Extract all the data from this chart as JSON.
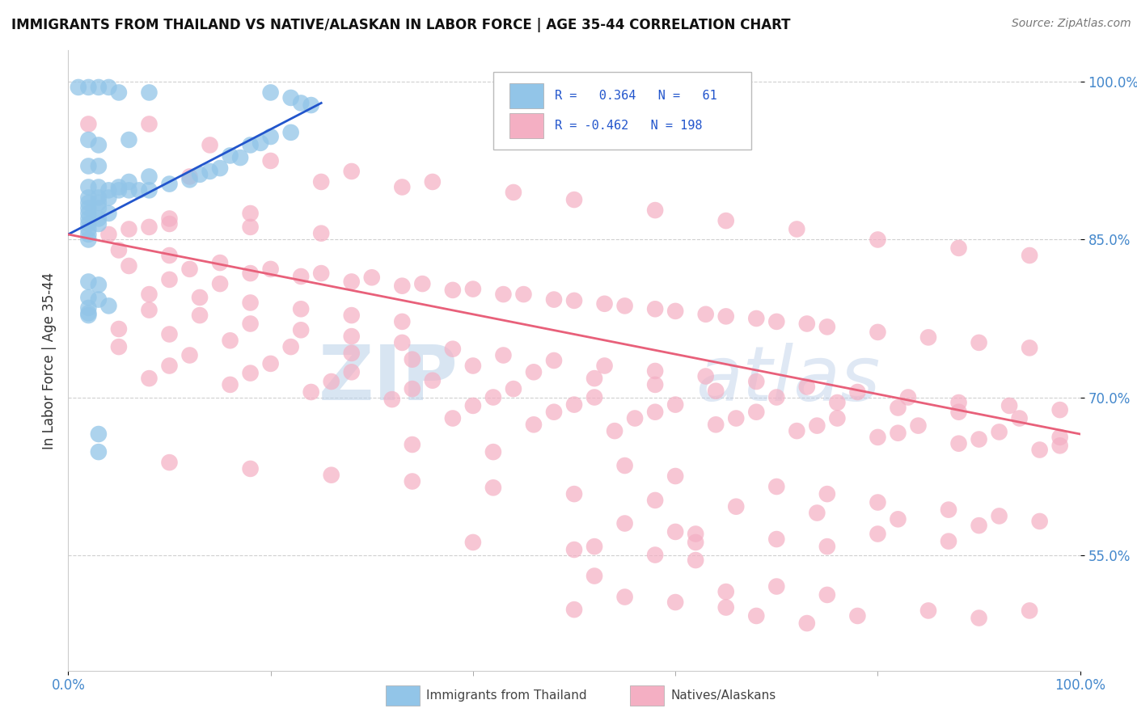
{
  "title": "IMMIGRANTS FROM THAILAND VS NATIVE/ALASKAN IN LABOR FORCE | AGE 35-44 CORRELATION CHART",
  "source": "Source: ZipAtlas.com",
  "ylabel": "In Labor Force | Age 35-44",
  "xlim": [
    0.0,
    1.0
  ],
  "ylim": [
    0.44,
    1.03
  ],
  "x_tick_labels": [
    "0.0%",
    "100.0%"
  ],
  "y_tick_labels": [
    "55.0%",
    "70.0%",
    "85.0%",
    "100.0%"
  ],
  "y_tick_positions": [
    0.55,
    0.7,
    0.85,
    1.0
  ],
  "blue_color": "#92c5e8",
  "pink_color": "#f4afc3",
  "line_blue": "#2255cc",
  "line_pink": "#e8607a",
  "watermark1": "ZIP",
  "watermark2": "atlas",
  "bg_color": "#ffffff",
  "grid_color": "#d0d0d0",
  "blue_scatter": [
    [
      0.01,
      0.995
    ],
    [
      0.02,
      0.995
    ],
    [
      0.03,
      0.995
    ],
    [
      0.04,
      0.995
    ],
    [
      0.05,
      0.99
    ],
    [
      0.08,
      0.99
    ],
    [
      0.2,
      0.99
    ],
    [
      0.22,
      0.985
    ],
    [
      0.23,
      0.98
    ],
    [
      0.02,
      0.945
    ],
    [
      0.03,
      0.94
    ],
    [
      0.06,
      0.945
    ],
    [
      0.02,
      0.92
    ],
    [
      0.03,
      0.92
    ],
    [
      0.02,
      0.9
    ],
    [
      0.03,
      0.9
    ],
    [
      0.04,
      0.897
    ],
    [
      0.05,
      0.897
    ],
    [
      0.06,
      0.897
    ],
    [
      0.07,
      0.897
    ],
    [
      0.08,
      0.897
    ],
    [
      0.02,
      0.89
    ],
    [
      0.03,
      0.89
    ],
    [
      0.04,
      0.89
    ],
    [
      0.02,
      0.885
    ],
    [
      0.03,
      0.885
    ],
    [
      0.02,
      0.88
    ],
    [
      0.03,
      0.88
    ],
    [
      0.02,
      0.875
    ],
    [
      0.04,
      0.875
    ],
    [
      0.02,
      0.87
    ],
    [
      0.03,
      0.87
    ],
    [
      0.02,
      0.865
    ],
    [
      0.03,
      0.865
    ],
    [
      0.02,
      0.86
    ],
    [
      0.02,
      0.855
    ],
    [
      0.1,
      0.903
    ],
    [
      0.12,
      0.907
    ],
    [
      0.14,
      0.915
    ],
    [
      0.16,
      0.93
    ],
    [
      0.18,
      0.94
    ],
    [
      0.2,
      0.948
    ],
    [
      0.05,
      0.9
    ],
    [
      0.06,
      0.905
    ],
    [
      0.08,
      0.91
    ],
    [
      0.24,
      0.978
    ],
    [
      0.13,
      0.912
    ],
    [
      0.15,
      0.918
    ],
    [
      0.17,
      0.928
    ],
    [
      0.19,
      0.942
    ],
    [
      0.22,
      0.952
    ],
    [
      0.02,
      0.85
    ],
    [
      0.02,
      0.81
    ],
    [
      0.03,
      0.807
    ],
    [
      0.02,
      0.795
    ],
    [
      0.03,
      0.793
    ],
    [
      0.02,
      0.785
    ],
    [
      0.04,
      0.787
    ],
    [
      0.02,
      0.78
    ],
    [
      0.02,
      0.778
    ],
    [
      0.03,
      0.665
    ],
    [
      0.03,
      0.648
    ]
  ],
  "pink_scatter": [
    [
      0.02,
      0.96
    ],
    [
      0.12,
      0.91
    ],
    [
      0.18,
      0.875
    ],
    [
      0.08,
      0.96
    ],
    [
      0.14,
      0.94
    ],
    [
      0.2,
      0.925
    ],
    [
      0.28,
      0.915
    ],
    [
      0.36,
      0.905
    ],
    [
      0.44,
      0.895
    ],
    [
      0.5,
      0.888
    ],
    [
      0.58,
      0.878
    ],
    [
      0.65,
      0.868
    ],
    [
      0.72,
      0.86
    ],
    [
      0.8,
      0.85
    ],
    [
      0.88,
      0.842
    ],
    [
      0.95,
      0.835
    ],
    [
      0.25,
      0.905
    ],
    [
      0.33,
      0.9
    ],
    [
      0.1,
      0.87
    ],
    [
      0.18,
      0.862
    ],
    [
      0.25,
      0.856
    ],
    [
      0.04,
      0.855
    ],
    [
      0.06,
      0.86
    ],
    [
      0.08,
      0.862
    ],
    [
      0.1,
      0.865
    ],
    [
      0.05,
      0.84
    ],
    [
      0.1,
      0.835
    ],
    [
      0.15,
      0.828
    ],
    [
      0.2,
      0.822
    ],
    [
      0.25,
      0.818
    ],
    [
      0.3,
      0.814
    ],
    [
      0.35,
      0.808
    ],
    [
      0.4,
      0.803
    ],
    [
      0.45,
      0.798
    ],
    [
      0.5,
      0.792
    ],
    [
      0.55,
      0.787
    ],
    [
      0.6,
      0.782
    ],
    [
      0.65,
      0.777
    ],
    [
      0.7,
      0.772
    ],
    [
      0.75,
      0.767
    ],
    [
      0.8,
      0.762
    ],
    [
      0.85,
      0.757
    ],
    [
      0.9,
      0.752
    ],
    [
      0.95,
      0.747
    ],
    [
      0.06,
      0.825
    ],
    [
      0.12,
      0.822
    ],
    [
      0.18,
      0.818
    ],
    [
      0.23,
      0.815
    ],
    [
      0.28,
      0.81
    ],
    [
      0.33,
      0.806
    ],
    [
      0.38,
      0.802
    ],
    [
      0.43,
      0.798
    ],
    [
      0.48,
      0.793
    ],
    [
      0.53,
      0.789
    ],
    [
      0.58,
      0.784
    ],
    [
      0.63,
      0.779
    ],
    [
      0.68,
      0.775
    ],
    [
      0.73,
      0.77
    ],
    [
      0.1,
      0.812
    ],
    [
      0.15,
      0.808
    ],
    [
      0.08,
      0.798
    ],
    [
      0.13,
      0.795
    ],
    [
      0.18,
      0.79
    ],
    [
      0.23,
      0.784
    ],
    [
      0.28,
      0.778
    ],
    [
      0.33,
      0.772
    ],
    [
      0.08,
      0.783
    ],
    [
      0.13,
      0.778
    ],
    [
      0.18,
      0.77
    ],
    [
      0.23,
      0.764
    ],
    [
      0.28,
      0.758
    ],
    [
      0.33,
      0.752
    ],
    [
      0.38,
      0.746
    ],
    [
      0.43,
      0.74
    ],
    [
      0.48,
      0.735
    ],
    [
      0.53,
      0.73
    ],
    [
      0.58,
      0.725
    ],
    [
      0.63,
      0.72
    ],
    [
      0.68,
      0.715
    ],
    [
      0.73,
      0.71
    ],
    [
      0.78,
      0.705
    ],
    [
      0.83,
      0.7
    ],
    [
      0.88,
      0.695
    ],
    [
      0.93,
      0.692
    ],
    [
      0.98,
      0.688
    ],
    [
      0.05,
      0.765
    ],
    [
      0.1,
      0.76
    ],
    [
      0.16,
      0.754
    ],
    [
      0.22,
      0.748
    ],
    [
      0.28,
      0.742
    ],
    [
      0.34,
      0.736
    ],
    [
      0.4,
      0.73
    ],
    [
      0.46,
      0.724
    ],
    [
      0.52,
      0.718
    ],
    [
      0.58,
      0.712
    ],
    [
      0.64,
      0.706
    ],
    [
      0.7,
      0.7
    ],
    [
      0.76,
      0.695
    ],
    [
      0.82,
      0.69
    ],
    [
      0.88,
      0.686
    ],
    [
      0.94,
      0.68
    ],
    [
      0.05,
      0.748
    ],
    [
      0.12,
      0.74
    ],
    [
      0.2,
      0.732
    ],
    [
      0.28,
      0.724
    ],
    [
      0.36,
      0.716
    ],
    [
      0.44,
      0.708
    ],
    [
      0.52,
      0.7
    ],
    [
      0.6,
      0.693
    ],
    [
      0.68,
      0.686
    ],
    [
      0.76,
      0.68
    ],
    [
      0.84,
      0.673
    ],
    [
      0.92,
      0.667
    ],
    [
      0.98,
      0.662
    ],
    [
      0.1,
      0.73
    ],
    [
      0.18,
      0.723
    ],
    [
      0.26,
      0.715
    ],
    [
      0.34,
      0.708
    ],
    [
      0.42,
      0.7
    ],
    [
      0.5,
      0.693
    ],
    [
      0.58,
      0.686
    ],
    [
      0.66,
      0.68
    ],
    [
      0.74,
      0.673
    ],
    [
      0.82,
      0.666
    ],
    [
      0.9,
      0.66
    ],
    [
      0.98,
      0.654
    ],
    [
      0.08,
      0.718
    ],
    [
      0.16,
      0.712
    ],
    [
      0.24,
      0.705
    ],
    [
      0.32,
      0.698
    ],
    [
      0.4,
      0.692
    ],
    [
      0.48,
      0.686
    ],
    [
      0.56,
      0.68
    ],
    [
      0.64,
      0.674
    ],
    [
      0.72,
      0.668
    ],
    [
      0.8,
      0.662
    ],
    [
      0.88,
      0.656
    ],
    [
      0.96,
      0.65
    ],
    [
      0.38,
      0.68
    ],
    [
      0.46,
      0.674
    ],
    [
      0.54,
      0.668
    ],
    [
      0.34,
      0.655
    ],
    [
      0.42,
      0.648
    ],
    [
      0.1,
      0.638
    ],
    [
      0.18,
      0.632
    ],
    [
      0.26,
      0.626
    ],
    [
      0.34,
      0.62
    ],
    [
      0.42,
      0.614
    ],
    [
      0.5,
      0.608
    ],
    [
      0.58,
      0.602
    ],
    [
      0.66,
      0.596
    ],
    [
      0.74,
      0.59
    ],
    [
      0.82,
      0.584
    ],
    [
      0.9,
      0.578
    ],
    [
      0.55,
      0.635
    ],
    [
      0.6,
      0.625
    ],
    [
      0.7,
      0.615
    ],
    [
      0.75,
      0.608
    ],
    [
      0.8,
      0.6
    ],
    [
      0.87,
      0.593
    ],
    [
      0.92,
      0.587
    ],
    [
      0.96,
      0.582
    ],
    [
      0.55,
      0.58
    ],
    [
      0.6,
      0.572
    ],
    [
      0.7,
      0.565
    ],
    [
      0.75,
      0.558
    ],
    [
      0.8,
      0.57
    ],
    [
      0.87,
      0.563
    ],
    [
      0.52,
      0.558
    ],
    [
      0.58,
      0.55
    ],
    [
      0.4,
      0.562
    ],
    [
      0.5,
      0.555
    ],
    [
      0.62,
      0.57
    ],
    [
      0.62,
      0.562
    ],
    [
      0.55,
      0.51
    ],
    [
      0.6,
      0.505
    ],
    [
      0.5,
      0.498
    ],
    [
      0.65,
      0.515
    ],
    [
      0.7,
      0.52
    ],
    [
      0.75,
      0.512
    ],
    [
      0.65,
      0.5
    ],
    [
      0.68,
      0.492
    ],
    [
      0.73,
      0.485
    ],
    [
      0.78,
      0.492
    ],
    [
      0.85,
      0.497
    ],
    [
      0.9,
      0.49
    ],
    [
      0.95,
      0.497
    ],
    [
      0.62,
      0.545
    ],
    [
      0.52,
      0.53
    ]
  ],
  "blue_line_x": [
    0.0,
    0.25
  ],
  "blue_line_y": [
    0.855,
    0.98
  ],
  "pink_line_x": [
    0.0,
    1.0
  ],
  "pink_line_y": [
    0.855,
    0.665
  ]
}
